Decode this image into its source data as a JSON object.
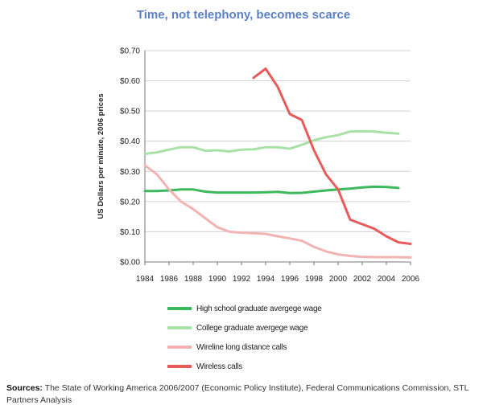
{
  "chart_data": {
    "type": "line",
    "title": "Time, not telephony, becomes scarce",
    "xlabel": "",
    "ylabel": "US Dollars per minute, 2006 prices",
    "xlim": [
      1984,
      2006
    ],
    "ylim": [
      0,
      0.7
    ],
    "x_ticks": [
      "1984",
      "1986",
      "1988",
      "1990",
      "1992",
      "1994",
      "1996",
      "1998",
      "2000",
      "2002",
      "2004",
      "2006"
    ],
    "y_ticks": [
      "$0.00",
      "$0.10",
      "$0.20",
      "$0.30",
      "$0.40",
      "$0.50",
      "$0.60",
      "$0.70"
    ],
    "grid": "horizontal",
    "legend_position": "bottom",
    "series": [
      {
        "name": "High school graduate avergege wage",
        "color": "#3cb95a",
        "x": [
          1984,
          1985,
          1986,
          1987,
          1988,
          1989,
          1990,
          1991,
          1992,
          1993,
          1994,
          1995,
          1996,
          1997,
          1998,
          1999,
          2000,
          2001,
          2002,
          2003,
          2004,
          2005
        ],
        "y": [
          0.235,
          0.235,
          0.237,
          0.24,
          0.24,
          0.233,
          0.23,
          0.23,
          0.23,
          0.23,
          0.231,
          0.232,
          0.228,
          0.229,
          0.233,
          0.237,
          0.24,
          0.243,
          0.247,
          0.249,
          0.248,
          0.245
        ]
      },
      {
        "name": "College graduate avergege wage",
        "color": "#a8e0a6",
        "x": [
          1984,
          1985,
          1986,
          1987,
          1988,
          1989,
          1990,
          1991,
          1992,
          1993,
          1994,
          1995,
          1996,
          1997,
          1998,
          1999,
          2000,
          2001,
          2002,
          2003,
          2004,
          2005
        ],
        "y": [
          0.358,
          0.363,
          0.372,
          0.38,
          0.38,
          0.368,
          0.37,
          0.366,
          0.372,
          0.373,
          0.38,
          0.38,
          0.375,
          0.388,
          0.403,
          0.413,
          0.42,
          0.432,
          0.433,
          0.432,
          0.428,
          0.425
        ]
      },
      {
        "name": "Wireline long distance calls",
        "color": "#f3b3b3",
        "x": [
          1984,
          1985,
          1986,
          1987,
          1988,
          1989,
          1990,
          1991,
          1992,
          1993,
          1994,
          1995,
          1996,
          1997,
          1998,
          1999,
          2000,
          2001,
          2002,
          2003,
          2004,
          2005,
          2006
        ],
        "y": [
          0.32,
          0.29,
          0.24,
          0.2,
          0.175,
          0.145,
          0.115,
          0.1,
          0.097,
          0.095,
          0.093,
          0.085,
          0.078,
          0.07,
          0.05,
          0.035,
          0.025,
          0.02,
          0.017,
          0.016,
          0.016,
          0.016,
          0.015
        ]
      },
      {
        "name": "Wireless calls",
        "color": "#e85b5b",
        "x": [
          1993,
          1994,
          1995,
          1996,
          1997,
          1998,
          1999,
          2000,
          2001,
          2002,
          2003,
          2004,
          2005,
          2006
        ],
        "y": [
          0.61,
          0.64,
          0.58,
          0.49,
          0.47,
          0.37,
          0.29,
          0.24,
          0.14,
          0.125,
          0.11,
          0.085,
          0.065,
          0.06
        ]
      }
    ]
  },
  "sources": {
    "label": "Sources:",
    "text": " The State of Working America 2006/2007 (Economic Policy Institute), Federal Communications Commission, STL Partners Analysis"
  }
}
